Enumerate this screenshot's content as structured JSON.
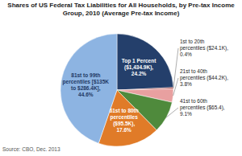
{
  "chart_data": {
    "type": "pie",
    "title": "Shares of US Federal Tax Liabilities for All Households, by Pre-tax Income Group, 2010 (Average Pre-tax Income)",
    "categories": [
      "Top 1 Percent ($1,434.9K),",
      "1st to 20th percentiles ($24.1K),",
      "21st to 40th percentiles ($44.2K),",
      "41st to 60th percentiles ($65.4),",
      "61st to 80th percentiles ($95.5K),",
      "81st to 99th percentiles [$135K to $286.4K],"
    ],
    "values": [
      24.2,
      0.4,
      3.8,
      9.1,
      17.6,
      44.6
    ],
    "value_labels": [
      "24.2%",
      "0.4%",
      "3.8%",
      "9.1%",
      "17.6%",
      "44.6%"
    ],
    "colors": [
      "#243f6b",
      "#9b2d2d",
      "#e8a0a0",
      "#4f8a3c",
      "#e07b28",
      "#8db4e2"
    ],
    "data_labels": true,
    "source": "Source: CBO, Dec. 2013"
  }
}
